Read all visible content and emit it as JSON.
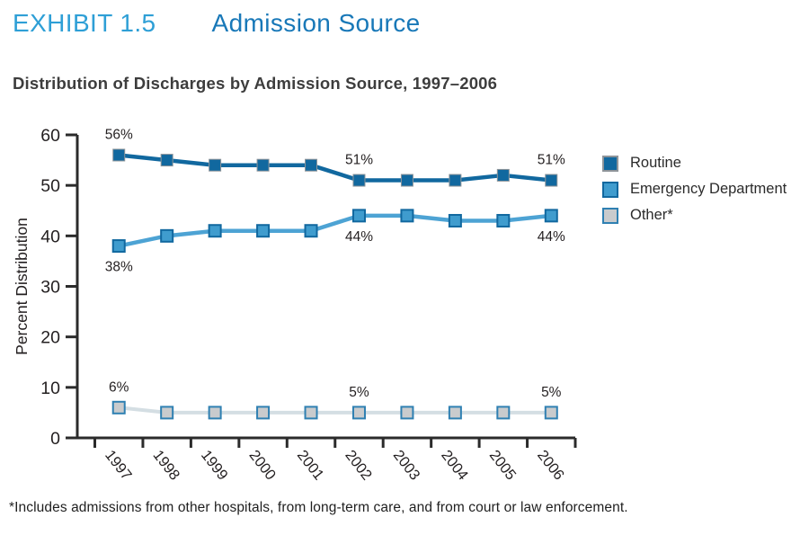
{
  "page": {
    "exhibit_label": "EXHIBIT 1.5",
    "exhibit_title": "Admission Source",
    "subtitle": "Distribution of Discharges by Admission Source, 1997–2006",
    "footnote": "*Includes admissions from other hospitals, from long-term care, and from court or law enforcement."
  },
  "colors": {
    "exhibit_label_blue": "#2E9FD6",
    "exhibit_title_blue": "#1878B8",
    "subtitle_gray": "#3D3D3D",
    "axis_ink": "#2B2B2B",
    "label_ink": "#231F20",
    "routine_blue": "#11689F",
    "emergency_fill_blue": "#3F9CCE",
    "emergency_line_blue": "#4DA3D4",
    "other_fill_gray": "#C9CBCD",
    "other_border_blue": "#2F80B2",
    "other_line_gray": "#D4DEE3"
  },
  "chart_data": {
    "type": "line",
    "title": "Distribution of Discharges by Admission Source, 1997–2006",
    "xlabel": "",
    "ylabel": "Percent Distribution",
    "ylim": [
      0,
      60
    ],
    "ytick_interval": 10,
    "yticks": [
      "0",
      "10",
      "20",
      "30",
      "40",
      "50",
      "60"
    ],
    "grid": false,
    "legend_position": "right",
    "categories": [
      "1997",
      "1998",
      "1999",
      "2000",
      "2001",
      "2002",
      "2003",
      "2004",
      "2005",
      "2006"
    ],
    "series": [
      {
        "name": "Routine",
        "values": [
          56,
          55,
          54,
          54,
          54,
          51,
          51,
          51,
          52,
          51
        ],
        "color": "#11689F",
        "marker_fill": "#11689F",
        "marker_border": "#8E9499",
        "marker_border_width": 1,
        "line_width": 4.5
      },
      {
        "name": "Emergency Department",
        "values": [
          38,
          40,
          41,
          41,
          41,
          44,
          44,
          43,
          43,
          44
        ],
        "color": "#4DA3D4",
        "marker_fill": "#3F9CCE",
        "marker_border": "#11689F",
        "marker_border_width": 2,
        "line_width": 4.5
      },
      {
        "name": "Other*",
        "values": [
          6,
          5,
          5,
          5,
          5,
          5,
          5,
          5,
          5,
          5
        ],
        "color": "#D4DEE3",
        "marker_fill": "#C9CBCD",
        "marker_border": "#2F80B2",
        "marker_border_width": 2,
        "line_width": 4
      }
    ],
    "point_labels": [
      {
        "series": 0,
        "year": "1997",
        "text": "56%",
        "position": "above"
      },
      {
        "series": 0,
        "year": "2002",
        "text": "51%",
        "position": "above"
      },
      {
        "series": 0,
        "year": "2006",
        "text": "51%",
        "position": "above"
      },
      {
        "series": 1,
        "year": "1997",
        "text": "38%",
        "position": "below"
      },
      {
        "series": 1,
        "year": "2002",
        "text": "44%",
        "position": "below"
      },
      {
        "series": 1,
        "year": "2006",
        "text": "44%",
        "position": "below"
      },
      {
        "series": 2,
        "year": "1997",
        "text": "6%",
        "position": "above"
      },
      {
        "series": 2,
        "year": "2002",
        "text": "5%",
        "position": "above"
      },
      {
        "series": 2,
        "year": "2006",
        "text": "5%",
        "position": "above"
      }
    ]
  }
}
